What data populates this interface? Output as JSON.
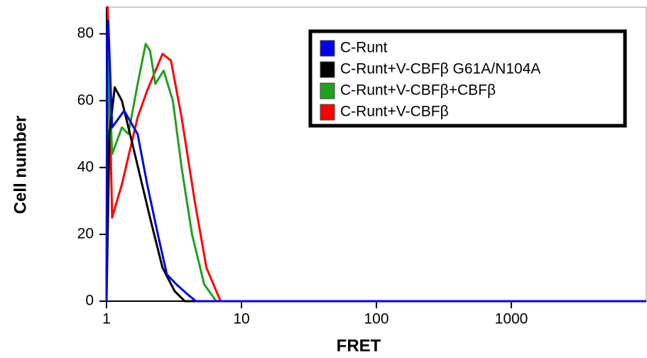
{
  "chart_data": {
    "type": "line",
    "xlabel": "FRET",
    "ylabel": "Cell number",
    "xscale": "log",
    "xlim": [
      1,
      10000
    ],
    "xticks": [
      1,
      10,
      100,
      1000
    ],
    "ylim": [
      0,
      88
    ],
    "yticks": [
      0,
      20,
      40,
      60,
      80
    ],
    "legend": "upper right",
    "series": [
      {
        "name": "C-Runt+V-CBFβ",
        "color": "#ff0000",
        "x": [
          1.0,
          1.02,
          1.1,
          1.3,
          1.7,
          2.0,
          2.2,
          2.6,
          3.0,
          3.6,
          4.5,
          5.5,
          7.0,
          10000
        ],
        "values": [
          88,
          88,
          25,
          35,
          55,
          63,
          67,
          74,
          72,
          55,
          30,
          10,
          0,
          0
        ]
      },
      {
        "name": "C-Runt+V-CBFβ+CBFβ",
        "color": "#1fa01f",
        "x": [
          1.0,
          1.03,
          1.1,
          1.3,
          1.45,
          1.7,
          1.95,
          2.1,
          2.3,
          2.65,
          3.1,
          3.6,
          4.3,
          5.3,
          6.5,
          10000
        ],
        "values": [
          0,
          75,
          44,
          52,
          50,
          65,
          77,
          75,
          65,
          69,
          60,
          40,
          20,
          5,
          0,
          0
        ]
      },
      {
        "name": "C-Runt+V-CBFβ G61A/N104A",
        "color": "#000000",
        "x": [
          1.0,
          1.05,
          1.15,
          1.3,
          1.6,
          2.1,
          2.6,
          3.2,
          3.8,
          10000
        ],
        "values": [
          0,
          50,
          64,
          60,
          45,
          25,
          10,
          3,
          0,
          0
        ]
      },
      {
        "name": "C-Runt",
        "color": "#0000ee",
        "x": [
          1.0,
          1.01,
          1.03,
          1.1,
          1.35,
          1.7,
          2.0,
          2.4,
          2.8,
          3.3,
          4.0,
          4.6,
          10000
        ],
        "values": [
          0,
          80,
          84,
          52,
          57,
          50,
          35,
          20,
          8,
          5,
          2,
          0,
          0
        ]
      }
    ]
  }
}
